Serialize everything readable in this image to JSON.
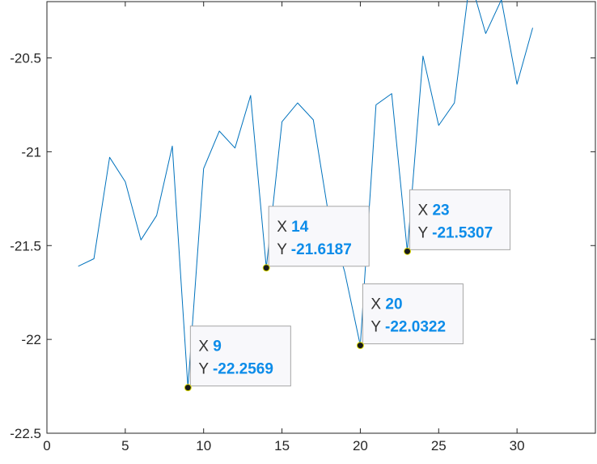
{
  "chart_data": {
    "type": "line",
    "title": "",
    "xlabel": "",
    "ylabel": "",
    "xlim": [
      0,
      35
    ],
    "ylim": [
      -22.5,
      -20.2
    ],
    "x_ticks": [
      0,
      5,
      10,
      15,
      20,
      25,
      30
    ],
    "y_ticks": [
      -22.5,
      -22,
      -21.5,
      -21,
      -20.5
    ],
    "x_tick_labels": [
      "0",
      "5",
      "10",
      "15",
      "20",
      "25",
      "30"
    ],
    "y_tick_labels": [
      "-22.5",
      "-22",
      "-21.5",
      "-21",
      "-20.5"
    ],
    "grid": false,
    "line_color": "#0072BD",
    "series": [
      {
        "x": [
          2,
          3,
          4,
          5,
          6,
          7,
          8,
          9,
          10,
          11,
          12,
          13,
          14,
          15,
          16,
          17,
          18,
          19,
          20,
          21,
          22,
          23,
          24,
          25,
          26,
          27,
          28,
          29,
          30,
          31
        ],
        "values": [
          -21.61,
          -21.57,
          -21.03,
          -21.16,
          -21.47,
          -21.34,
          -20.97,
          -22.2569,
          -21.09,
          -20.89,
          -20.98,
          -20.7,
          -21.6187,
          -20.84,
          -20.74,
          -20.83,
          -21.35,
          -21.64,
          -22.0322,
          -20.75,
          -20.69,
          -21.5307,
          -20.49,
          -20.86,
          -20.74,
          -20.08,
          -20.37,
          -20.19,
          -20.64,
          -20.34
        ]
      }
    ],
    "datatips": [
      {
        "x_key": "X",
        "y_key": "Y",
        "x": 9,
        "y": -22.2569,
        "x_text": "9",
        "y_text": "-22.2569"
      },
      {
        "x_key": "X",
        "y_key": "Y",
        "x": 14,
        "y": -21.6187,
        "x_text": "14",
        "y_text": "-21.6187"
      },
      {
        "x_key": "X",
        "y_key": "Y",
        "x": 20,
        "y": -22.0322,
        "x_text": "20",
        "y_text": "-22.0322"
      },
      {
        "x_key": "X",
        "y_key": "Y",
        "x": 23,
        "y": -21.5307,
        "x_text": "23",
        "y_text": "-21.5307"
      }
    ],
    "datatip_value_color": "#0C8CE9"
  }
}
